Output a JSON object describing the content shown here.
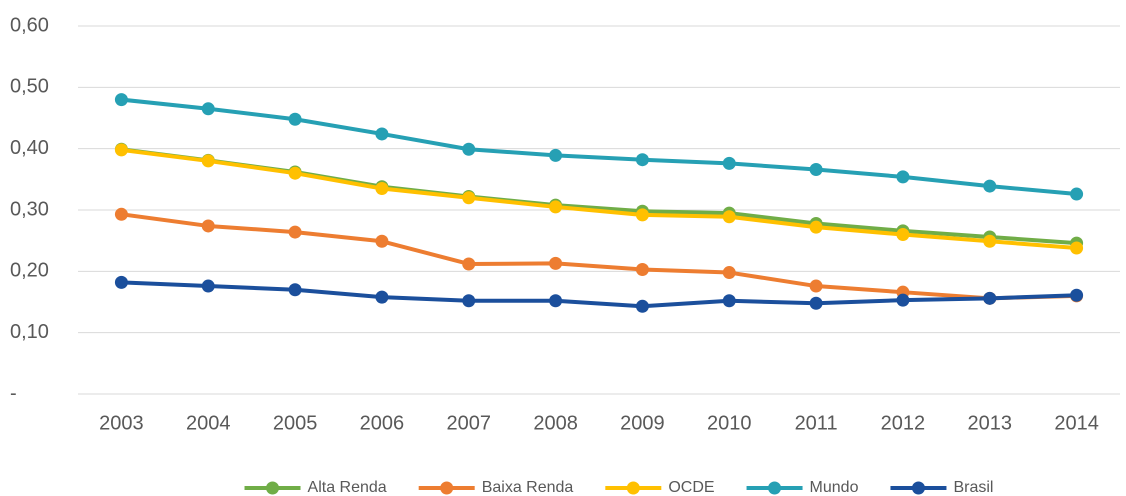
{
  "chart_data": {
    "type": "line",
    "categories": [
      "2003",
      "2004",
      "2005",
      "2006",
      "2007",
      "2008",
      "2009",
      "2010",
      "2011",
      "2012",
      "2013",
      "2014"
    ],
    "series": [
      {
        "name": "Alta Renda",
        "color": "#70ad47",
        "values": [
          0.399,
          0.381,
          0.362,
          0.338,
          0.322,
          0.308,
          0.298,
          0.295,
          0.278,
          0.266,
          0.256,
          0.246
        ]
      },
      {
        "name": "Baixa Renda",
        "color": "#ed7d31",
        "values": [
          0.293,
          0.274,
          0.264,
          0.249,
          0.212,
          0.213,
          0.203,
          0.198,
          0.176,
          0.166,
          0.156,
          0.16
        ]
      },
      {
        "name": "OCDE",
        "color": "#ffc000",
        "values": [
          0.398,
          0.38,
          0.36,
          0.335,
          0.32,
          0.305,
          0.292,
          0.289,
          0.272,
          0.26,
          0.249,
          0.238
        ]
      },
      {
        "name": "Mundo",
        "color": "#26a0b4",
        "values": [
          0.48,
          0.465,
          0.448,
          0.424,
          0.399,
          0.389,
          0.382,
          0.376,
          0.366,
          0.354,
          0.339,
          0.326
        ]
      },
      {
        "name": "Brasil",
        "color": "#1b4f9c",
        "values": [
          0.182,
          0.176,
          0.17,
          0.158,
          0.152,
          0.152,
          0.143,
          0.152,
          0.148,
          0.153,
          0.156,
          0.161
        ]
      }
    ],
    "ylim": [
      0,
      0.6
    ],
    "yticks": [
      {
        "value": 0,
        "label": "-"
      },
      {
        "value": 0.1,
        "label": "0,10"
      },
      {
        "value": 0.2,
        "label": "0,20"
      },
      {
        "value": 0.3,
        "label": "0,30"
      },
      {
        "value": 0.4,
        "label": "0,40"
      },
      {
        "value": 0.5,
        "label": "0,50"
      },
      {
        "value": 0.6,
        "label": "0,60"
      }
    ],
    "grid": true,
    "legend": "bottom"
  }
}
